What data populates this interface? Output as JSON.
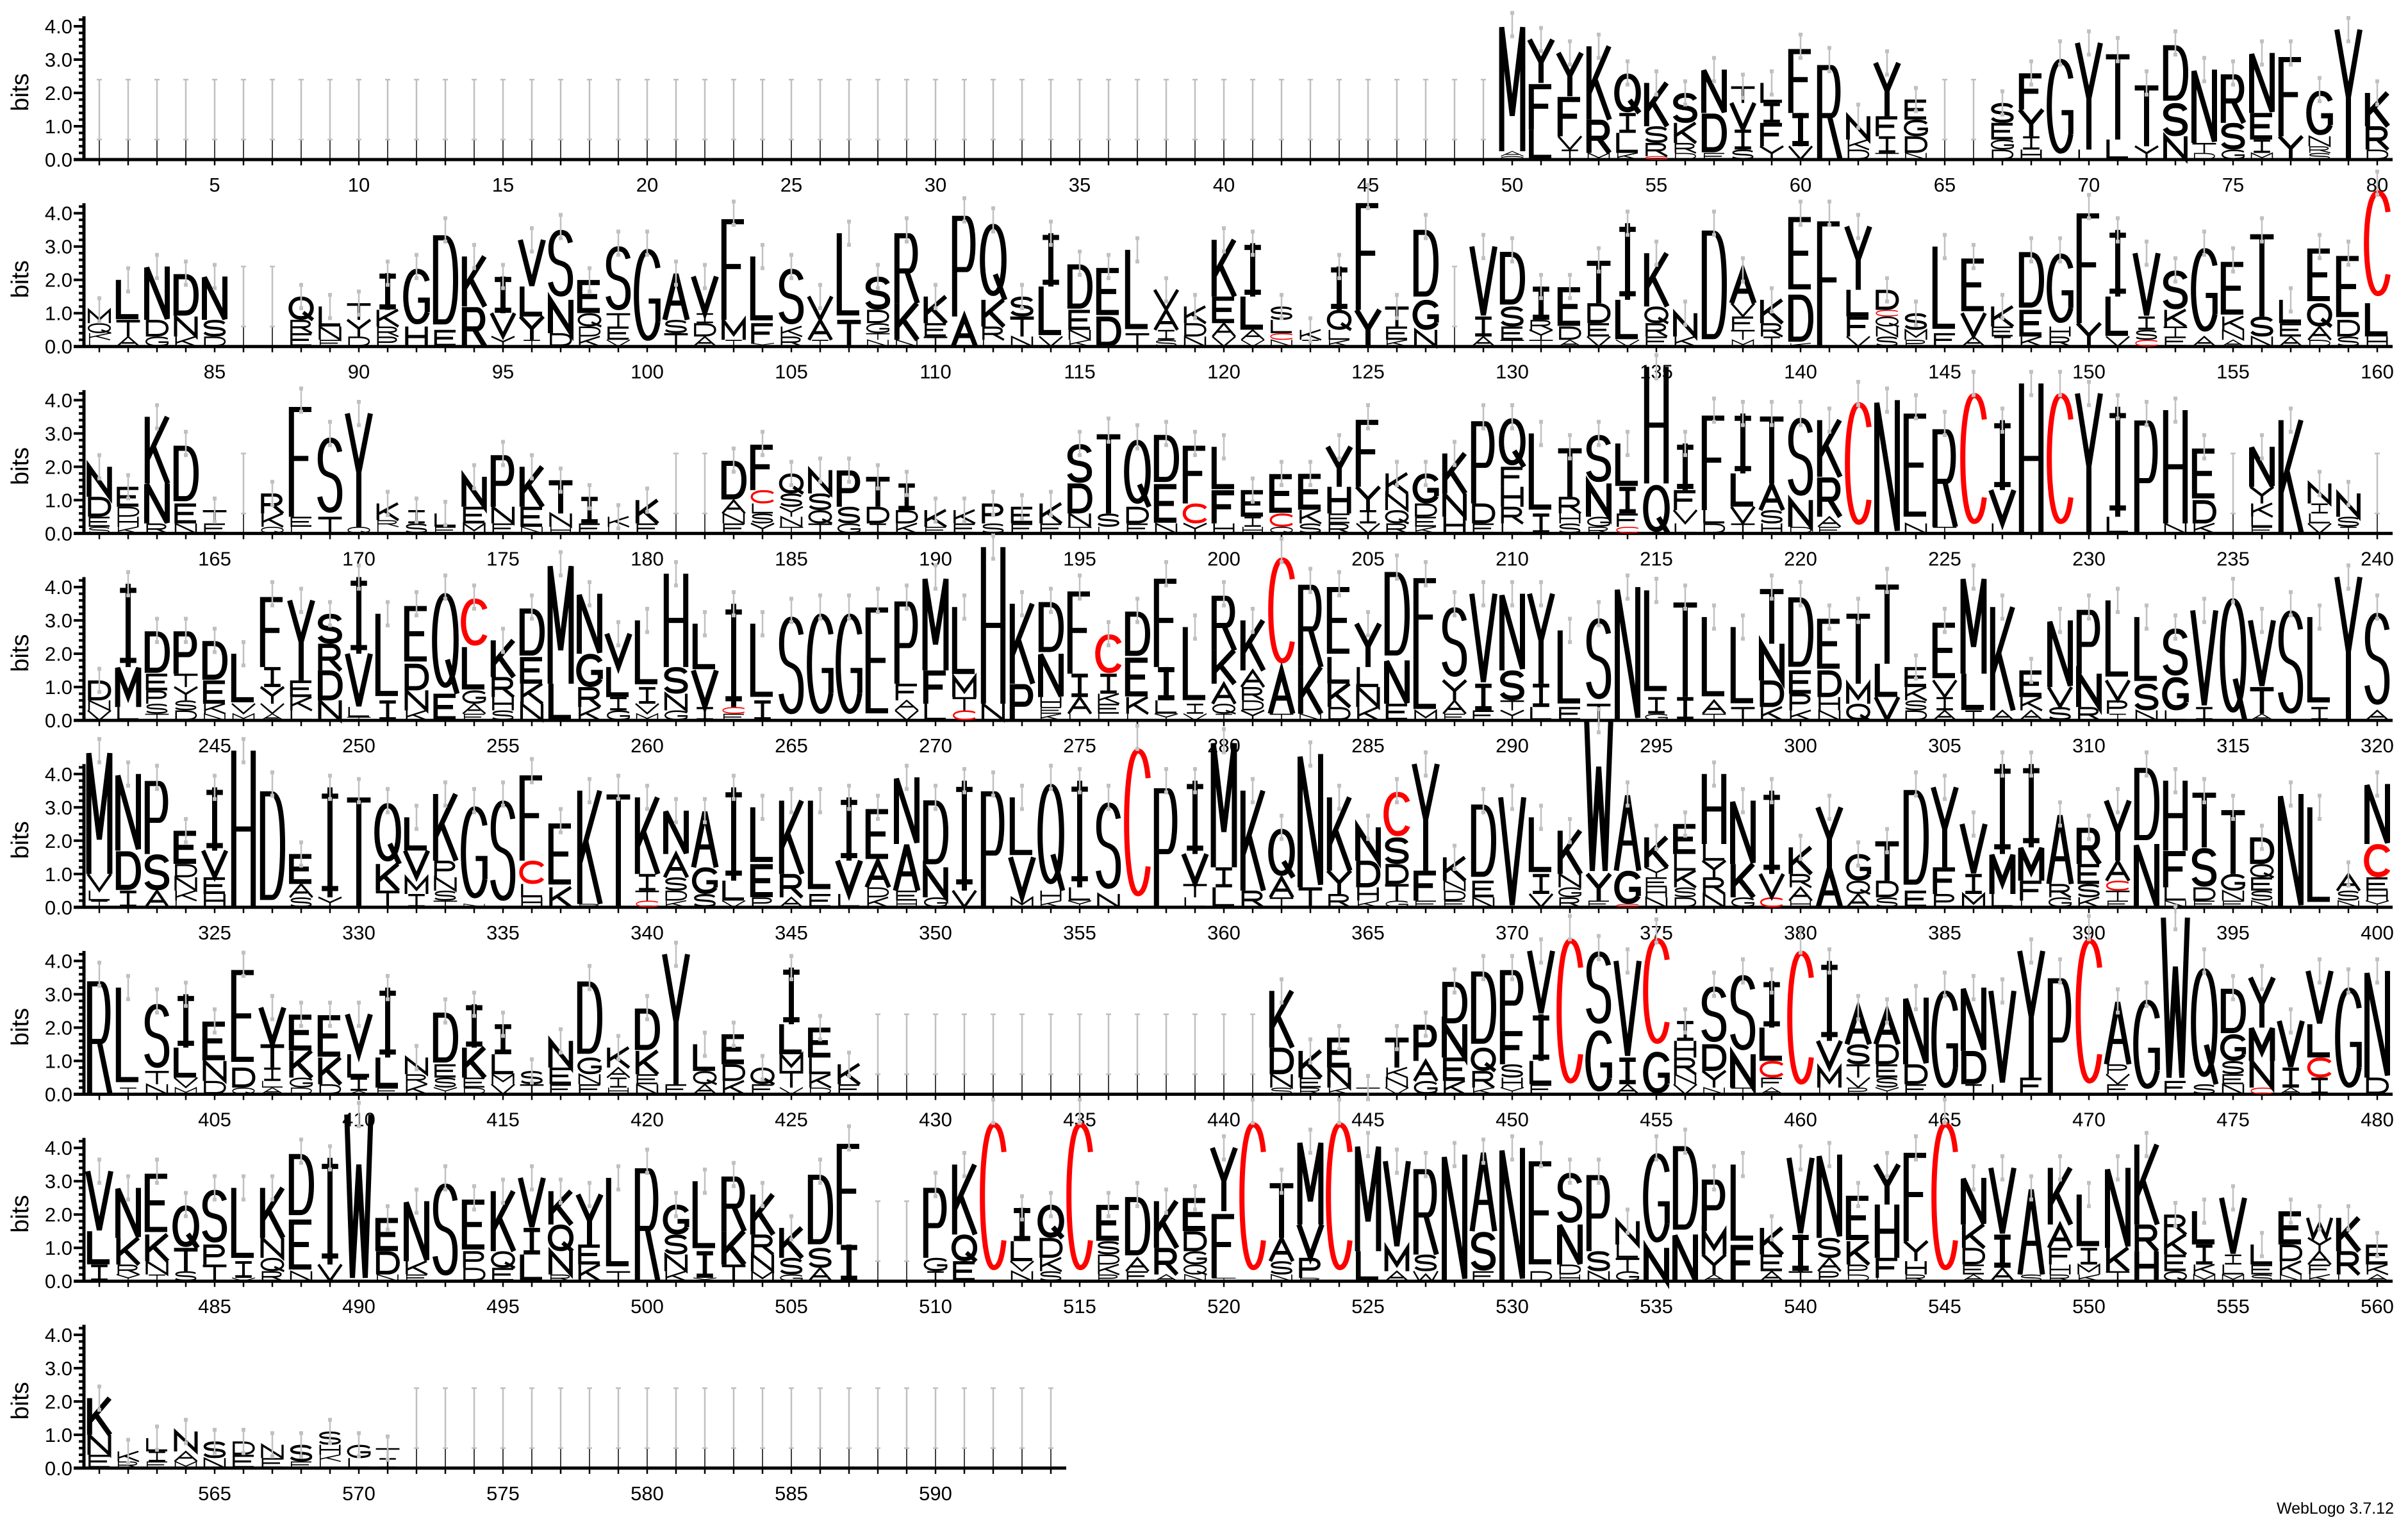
{
  "chart_data": {
    "type": "sequence-logo",
    "title": "",
    "ylabel": "bits",
    "ylim": [
      0,
      4.3
    ],
    "yticks": [
      "0.0",
      "1.0",
      "2.0",
      "3.0",
      "4.0"
    ],
    "positions": [
      1,
      594
    ],
    "positions_per_row": 80,
    "x_tick_label_step": 5,
    "colors": {
      "C": "#ff0000",
      "default": "#000000",
      "errorbar": "#c0c0c0"
    },
    "stacks": {
      "50": "M3.8 A0.15 Q0.1",
      "51": "Y1.3 F1.4 L0.9",
      "52": "Y1.3 F1.2 V0.4 I0.3",
      "53": "K2.2 R1.0 M0.2",
      "54": "Q1.2 I0.6 L0.6 K0.2",
      "55": "K1.3 S0.5 R0.4 C0.1",
      "56": "S0.9 K0.6 R0.3 D0.2",
      "57": "N1.3 D1.2 E0.2",
      "58": "T0.5 V0.8 I0.6 S0.3",
      "59": "L0.6 I0.6 F0.7 Y0.4",
      "60": "F2.0 I1.0 V0.4",
      "61": "R3.0",
      "62": "N0.7 K0.3 D0.3",
      "63": "Y1.6 F0.6 I0.5 T0.2",
      "64": "E0.6 G0.5 D0.5 N0.2",
      "67": "S0.6 E0.5 G0.3 D0.3",
      "68": "F1.1 Y0.8 I0.4 H0.3",
      "69": "G3.2",
      "70": "Y3.2 L0.3",
      "71": "T2.7 L0.6",
      "72": "T1.9 Y0.4",
      "73": "D1.8 S1.0 N0.7",
      "74": "N2.2 T0.3 D0.2",
      "75": "R1.5 S0.8 G0.3",
      "76": "N1.8 E0.8 I0.4 M0.2",
      "77": "F2.5 Y0.7",
      "78": "G1.4 N0.3 R0.2 S0.2",
      "79": "Y3.9",
      "80": "K1.0 R0.7 D0.3",
      "81": "M0.4 Q0.3 K0.2 L0.2",
      "82": "L1.2 T0.5 A0.3",
      "83": "N1.6 D0.5 G0.3",
      "84": "D1.3 N0.6 K0.3",
      "85": "N1.3 S0.5 D0.3",
      "88": "Q0.7 R0.4 E0.4",
      "89": "L0.6 N0.4 E0.2",
      "90": "T0.5 Y0.5 D0.3",
      "91": "I1.1 K0.5 R0.3 P0.3",
      "92": "G1.8 H0.6",
      "93": "D3.0 E0.5",
      "94": "K1.5 R1.2",
      "95": "I1.1 V0.7 Y0.3",
      "96": "V1.4 L0.9 Y0.7 I0.2",
      "97": "S2.2 N1.0 D0.4",
      "98": "E1.0 Q0.4 D0.3 K0.3",
      "99": "S2.1 T0.4 E0.4 V0.2",
      "100": "G3.1",
      "101": "A1.4 S0.4 T0.4",
      "102": "V1.1 I0.3 D0.4 A0.3",
      "103": "F3.2 M0.6 I0.2",
      "104": "L2.0 F0.6 Y0.1",
      "105": "S1.8 K0.3 R0.3",
      "106": "V0.7 A0.6 I0.2",
      "107": "L2.6 T0.8",
      "108": "S1.0 D0.4 G0.3 T0.2 N0.2",
      "109": "R2.2 K1.1 N0.2",
      "110": "K0.8 E0.4 T0.3",
      "111": "P3.2 A0.9",
      "112": "Q2.4 K0.8 R0.4 L0.2",
      "113": "S0.6 T0.6 N0.3",
      "114": "I1.6 L1.5 V0.3",
      "115": "D1.4 E0.6 N0.3 K0.2",
      "116": "E1.5 D0.9",
      "117": "L2.5 T0.4",
      "118": "V0.6 A0.6 I0.3 S0.2",
      "119": "K0.5 D0.4 N0.3",
      "120": "K1.7 E0.8 A0.4 V0.3",
      "121": "I1.6 L1.0 A0.3 V0.2",
      "122": "S0.4 L0.4 C0.2 N0.2",
      "123": "K0.3 I0.2",
      "124": "I1.3 Q0.6 L0.3 K0.2",
      "125": "F3.4 Y1.1",
      "126": "T0.6 E0.4 K0.2",
      "127": "D2.2 G0.9 N0.5",
      "129": "V2.1 I0.6 A0.3",
      "130": "D1.7 S0.6 E0.4 T0.2",
      "131": "I1.0 R0.3 Y0.3 T0.2",
      "132": "E1.2 D0.4 A0.2",
      "133": "T1.3 D0.6 E0.4 V0.3",
      "134": "I2.3 L1.2 V0.2",
      "135": "K1.6 Q0.5 R0.4 E0.3",
      "136": "N0.7 K0.3",
      "137": "D3.7",
      "138": "A1.0 V0.4 F0.4 T0.3 M0.2",
      "139": "K0.7 R0.4 I0.3",
      "140": "E2.4 D1.5 K0.1",
      "141": "F4.0",
      "142": "Y1.9 L0.8 F0.6 V0.3",
      "143": "D0.6 C0.2 Q0.3 N0.3 S0.3",
      "144": "S0.5 M0.3 P0.2",
      "145": "L2.6 F0.4",
      "146": "E1.7 V0.7 A0.3",
      "147": "K0.6 E0.3 I0.3",
      "148": "D1.8 E0.8 K0.3",
      "149": "G2.3 H0.3 R0.3",
      "150": "F3.5 Y0.7",
      "151": "I2.0 L1.2 V0.3",
      "152": "V1.9 I0.4 S0.3 C0.2",
      "153": "S1.2 K0.5 T0.3 E0.3",
      "154": "G2.8 A0.3",
      "155": "E1.7 K0.4 N0.3 A0.2",
      "156": "T2.6 S0.6 N0.3",
      "157": "L0.7 E0.4 A0.3",
      "158": "E1.7 Q0.7 A0.4 D0.2",
      "159": "E2.0 D0.5 S0.3",
      "160": "C3.6 L1.0 H0.3",
      "161": "N0.9 D0.6 E0.3 S0.2",
      "162": "E0.6 D0.3 H0.3 K0.2",
      "163": "K2.0 N1.2 R0.3",
      "164": "D1.8 E0.6 N0.3",
      "165": "T0.4 E0.3",
      "167": "R0.6 K0.4 Q0.2",
      "168": "F3.5 E0.3 L0.2",
      "169": "S2.5 T0.5",
      "170": "Y3.4 Q0.2",
      "171": "K0.5 R0.2 L0.2",
      "172": "I0.4 S0.3",
      "173": "L0.4 E0.2",
      "174": "N0.9 E0.5 M0.3",
      "175": "P1.6 N0.5 E0.3",
      "176": "K1.2 E0.6 N0.2",
      "177": "T1.0 N0.4 H0.2",
      "178": "I0.8 E0.3",
      "179": "K0.3 L0.2",
      "180": "K0.7 E0.3",
      "183": "D1.2 A0.4 N0.3 E0.3",
      "184": "F1.4 C0.4 L0.3 S0.3 Y0.3",
      "185": "Q0.6 S0.4 Y0.3 N0.3 T0.2",
      "186": "N0.7 S0.5 Q0.4 T0.3",
      "187": "P1.1 S0.5 G0.3",
      "188": "T0.9 D0.5 I0.3",
      "189": "I0.8 D0.4 K0.3",
      "190": "K0.5 E0.2",
      "191": "K0.4 E0.3",
      "192": "P0.6 S0.3",
      "193": "E0.5 F0.3",
      "194": "K0.6 E0.3",
      "195": "S1.2 D0.9 N0.4 T0.2",
      "196": "T2.5 S0.4 L0.2",
      "197": "Q2.1 D0.5 E0.3",
      "198": "D1.5 E1.2 N0.3",
      "199": "F1.8 C0.6 Y0.3",
      "200": "L1.3 F1.0 H0.3",
      "201": "E0.8 I0.3 H0.2",
      "202": "E1.2 C0.4 Q0.2",
      "203": "E1.1 K0.4 S0.3",
      "204": "Y1.2 H0.8 E0.3 R0.3",
      "205": "F2.1 Y0.7 I0.4 V0.3",
      "206": "K0.6 N0.5 Q0.4 R0.3",
      "207": "G0.9 D0.4 E0.3 K0.2",
      "208": "K1.2 N0.7 H0.5",
      "209": "P2.6 D0.6 E0.3",
      "210": "Q1.5 F0.6 H0.6 R0.5 L0.3",
      "211": "L2.4 I0.6",
      "212": "T1.5 R0.5 H0.3 S0.3",
      "213": "S1.5 N1.0 G0.3 R0.2",
      "214": "L1.3 I0.8 F0.4 C0.2",
      "215": "H3.5 Q1.5",
      "216": "I1.4 F0.6 V0.4 L0.3",
      "217": "F3.0 L0.4 D0.3",
      "218": "I1.8 L1.0 V0.5 T0.3",
      "219": "T2.1 A0.8 S0.4 H0.3",
      "220": "S2.6 N0.8 D0.2",
      "221": "K1.7 R1.2 A0.3 E0.2",
      "222": "C4.2",
      "223": "N4.0",
      "224": "E3.5 N0.3",
      "225": "R3.1 T0.2",
      "226": "C4.5",
      "227": "I2.1 V1.0 L0.3",
      "228": "H4.5",
      "229": "C4.5",
      "230": "Y4.2",
      "231": "I3.3 L0.5",
      "232": "P3.6",
      "233": "H3.4 N0.3",
      "234": "E1.6 D0.7 K0.3",
      "236": "N1.2 Y0.5 K0.4 L0.3 E0.2",
      "237": "K3.4",
      "238": "N0.6 I0.3 L0.3 V0.3",
      "239": "N0.7 S0.3 I0.2",
      "241": "D0.6 N0.3 V0.3",
      "242": "I2.5 M1.2 L0.4",
      "243": "D1.3 E0.5 P0.4 S0.3 T0.2",
      "244": "P1.3 T0.4 Y0.4 S0.3 D0.3",
      "245": "D1.2 E0.7 K0.3 N0.2",
      "246": "L1.5 V0.3 M0.2",
      "247": "F2.2 I0.6 Y0.5 V0.3 A0.2",
      "248": "Y2.4 E0.5 K0.4 L0.3",
      "249": "S0.9 R0.8 D0.9 N0.6",
      "250": "I2.3 V1.6 L0.3 T0.1",
      "251": "L2.6 I0.6",
      "252": "E1.8 D0.8 N0.6 K0.3",
      "253": "Q3.2 E0.8",
      "254": "C1.5 L1.3 G0.4 A0.3 F0.2",
      "255": "K1.1 R0.6 H0.4 S0.3",
      "256": "D1.5 E0.8 K0.6 N0.5",
      "257": "M3.6 L1.1",
      "258": "N1.8 G1.0 R0.6 K0.4",
      "259": "V1.0 L0.9 I0.4 G0.3",
      "260": "L2.0 I0.5 V0.3 M0.2",
      "261": "H2.8 S0.8 N0.5 G0.3",
      "262": "L1.4 V1.1 I0.4",
      "263": "I3.1 C0.2 E0.2",
      "264": "L2.3 I0.6",
      "265": "S3.3",
      "266": "G3.4",
      "267": "G3.4",
      "268": "E3.6",
      "269": "P2.6 F0.5 A0.3 V0.3",
      "270": "M2.8 F1.0 L0.5",
      "271": "L2.1 M0.6 T0.4 C0.3",
      "272": "H4.7 N0.5",
      "273": "K2.4 P1.1",
      "274": "D1.6 N1.3 H0.3 E0.2 K0.2",
      "275": "F2.6 I0.7 A0.5 L0.2",
      "276": "C1.2 I0.6 K0.3 E0.3 L0.2",
      "277": "D1.4 E1.2 K0.5 L0.2",
      "278": "F2.8 I1.0 L0.4 Y0.2",
      "279": "L2.3 I0.3 V0.2",
      "280": "R1.7 K1.0 A0.6 Q0.3 I0.2",
      "281": "K1.5 A0.5 R0.4 D0.3 Y0.3",
      "282": "C3.6 A1.3 T0.2",
      "283": "R2.6 K1.4 N0.2",
      "284": "E2.2 L0.8 K0.7 D0.4",
      "285": "Y1.3 L0.6 N0.6 K0.4",
      "286": "D2.8 N1.3 E0.5",
      "287": "F2.6 L1.5 M0.3",
      "288": "S2.3 Y0.6 A0.4 F0.2",
      "289": "V2.7 I0.8 F0.3",
      "290": "N2.3 S0.9 T0.3 Y0.3",
      "291": "Y2.7 I0.7 L0.4",
      "292": "L2.3 E0.4",
      "293": "S2.7 T0.5",
      "294": "N4.0",
      "295": "L3.2 I0.5 G0.2",
      "296": "T3.0 I0.7",
      "297": "L2.5 A0.4 T0.2",
      "298": "L2.4 T0.4",
      "299": "T1.7 N1.1 D0.8 K0.4",
      "300": "D2.3 E0.7 P0.5 K0.3",
      "301": "E1.6 D0.8 H0.4 N0.3",
      "302": "T2.2 M0.6 Q0.5",
      "303": "T2.5 L1.0 V0.7",
      "304": "E0.6 K0.4 S0.3 D0.3",
      "305": "E1.8 V0.5 I0.4 A0.3",
      "306": "M2.9 L1.1 I0.3",
      "307": "K3.1 A0.3",
      "308": "E0.8 K0.4 A0.3",
      "309": "N2.0 V0.6 S0.4",
      "310": "P2.0 N1.0 R0.4",
      "311": "L2.4 V0.6 P0.4 I0.2",
      "312": "L2.0 S0.8 N0.3",
      "313": "S1.5 G1.0 L0.3",
      "314": "V2.9 I0.4",
      "315": "Q3.9",
      "316": "V2.0 T0.8 A0.2",
      "317": "S3.5",
      "318": "L2.7 I0.4",
      "319": "Y4.3",
      "320": "S3.1 A0.3",
      "321": "M3.7 V0.5 L0.3 I0.2",
      "322": "N2.3 D1.2 I0.5",
      "323": "P2.3 S1.1 A0.5",
      "324": "E1.0 D0.4 N0.4 K0.3 L0.2",
      "325": "I1.9 V0.8 E0.5 H0.4",
      "326": "H4.7",
      "327": "D3.7",
      "328": "E0.9 A0.4 S0.3",
      "329": "I3.3 Y0.3",
      "330": "T3.5",
      "331": "Q1.9 K0.8 T0.5",
      "332": "L1.0 V0.8 M0.5 I0.4",
      "333": "K2.0 P0.5 N0.4 S0.3 T0.2",
      "334": "G3.1 N0.1",
      "335": "S3.4",
      "336": "F2.7 C0.7 L0.4 H0.3",
      "337": "E2.0 K0.6",
      "338": "K3.4 R0.1",
      "339": "T3.6",
      "340": "K2.3 I0.5 T0.3 C0.2",
      "341": "N1.3 A0.7 S0.4 D0.3 K0.2",
      "342": "A1.7 G0.8 S0.4",
      "343": "I2.8 L0.6 V0.2",
      "344": "L1.7 E1.0 P0.3",
      "345": "K2.2 R0.7 A0.3",
      "346": "L2.8 E0.4",
      "347": "I1.9 V1.0 L0.4",
      "348": "E1.6 A0.8 D0.3 K0.3",
      "349": "N2.0 A1.4 E0.3 H0.2",
      "350": "D2.1 N0.9 G0.3",
      "351": "I3.3 V0.5",
      "352": "P3.7",
      "353": "L1.8 V1.2 M0.3",
      "354": "Q3.4 H0.3 K0.2",
      "355": "I3.2 L0.4 Y0.2",
      "356": "S2.9 N0.4",
      "357": "C5.1",
      "358": "P3.8",
      "359": "I2.2 V0.9 T0.4 L0.3",
      "360": "M3.8 I0.6 L0.6",
      "361": "K3.0 R0.5",
      "362": "Q1.5 A0.6 T0.3",
      "363": "N4.0 T0.6",
      "364": "K2.2 Y0.7 R0.4",
      "365": "N1.0 D0.8 H0.4 K0.2",
      "366": "C1.4 S0.8 D0.6 T0.5 G0.2",
      "367": "Y3.2 F0.9 E0.2",
      "368": "K0.7 N0.3 D0.3 E0.2",
      "369": "D2.4 E0.5 N0.3",
      "370": "V3.3",
      "371": "L1.7 I0.6 V0.4",
      "372": "K1.3 N0.4 G0.3 R0.3",
      "373": "W4.6 Y0.8 F0.2",
      "374": "A2.3 G1.0 C0.1",
      "375": "K0.9 Y0.3 E0.3 H0.3 N0.3",
      "376": "E0.9 L0.5 K0.5 S0.3 D0.3",
      "377": "H2.1 L0.5 Y0.5 R0.5 N0.4",
      "378": "N1.9 K1.0 G0.3",
      "379": "I2.5 V0.7 C0.3",
      "380": "K0.8 R0.4 A0.4 H0.2",
      "381": "Y1.8 A1.2",
      "382": "G0.8 Q0.4 A0.4",
      "383": "T1.2 D0.5 S0.3",
      "384": "D3.2 E0.5",
      "385": "Y2.4 F0.8 P0.4",
      "386": "V1.5 I0.6 M0.4",
      "387": "I2.7 M1.2 L0.4",
      "388": "I2.5 M1.0 F0.6 L0.2",
      "389": "A2.1 R0.4 G0.3",
      "390": "R1.1 E0.6 S0.4 K0.3",
      "391": "Y1.8 A0.6 C0.3 T0.3 F0.2",
      "392": "D2.4 N1.9",
      "393": "H2.1 F1.1 L0.4 N0.2",
      "394": "T1.7 S1.2 D0.4 E0.2",
      "395": "T2.0 G0.5 N0.3 E0.2",
      "396": "D0.8 Q0.4 E0.4 S0.3 N0.2",
      "397": "N3.4",
      "398": "L3.0",
      "399": "A0.5 S0.3 N0.2",
      "400": "N1.8 C1.0 E0.4 H0.3 Y0.2",
      "401": "R3.6",
      "402": "L3.0 I0.2",
      "403": "S2.1 T0.4 N0.3",
      "404": "I1.6 L0.9 V0.3 M0.2",
      "405": "E1.2 N0.6 D0.4",
      "406": "E3.1 D0.6 Q0.2",
      "407": "V1.1 T0.7 I0.4 L0.2 A0.2",
      "408": "E1.1 K0.8 G0.3 D0.2",
      "409": "E1.3 K0.8 D0.3",
      "410": "V1.2 L0.7 I0.4 A0.1",
      "411": "I2.1 L0.9 F0.2",
      "412": "N0.5 R0.3 K0.3",
      "413": "D1.6 E0.4 S0.3 Y0.2",
      "414": "I1.3 K0.9 E0.3 D0.2",
      "415": "I0.9 L0.6 M0.3 V0.3",
      "416": "S0.4 T0.3",
      "417": "N0.8 E0.5 F0.3",
      "418": "D2.4 G0.5 N0.3 E0.3",
      "419": "K0.6 A0.3 I0.3 H0.2",
      "420": "D1.3 K0.7 E0.3 N0.3",
      "421": "Y3.9 F0.3",
      "422": "L0.8 Q0.4 A0.3",
      "423": "E0.9 D0.5 K0.4",
      "424": "Q0.5 E0.3",
      "425": "I1.7 L0.9 M0.5 T0.5 V0.2",
      "426": "E0.9 L0.5 K0.4 D0.2",
      "427": "K0.6 E0.3",
      "442": "K1.7 D0.8 N0.4 S0.2",
      "443": "K0.8 E0.3 R0.2",
      "444": "E0.9 N0.6 K0.2",
      "445": "T0.2",
      "446": "T0.9 K0.3 N0.3 V0.2",
      "447": "P1.1 A0.6 G0.4",
      "448": "D1.3 N1.0 E0.7 K0.4",
      "449": "D2.4 Q0.7 R0.5 K0.2",
      "450": "P1.9 F1.0 S0.4 H0.3 Y0.2",
      "451": "V1.9 I1.4 L0.7 F0.3",
      "452": "C5.0",
      "453": "S2.4 G2.0",
      "454": "V2.9 I0.8 A0.3",
      "455": "C3.6 G1.3",
      "456": "I0.6 H0.5 R0.5 N0.3 V0.3",
      "457": "S1.8 D0.8 Y0.5 N0.2",
      "458": "S2.5 N1.0 T0.2",
      "459": "I1.4 L1.0 C0.5 F0.3 A0.2",
      "460": "C4.6",
      "461": "I2.4 V0.8 M0.6 L0.2",
      "462": "A1.1 S0.6 T0.4 V0.3 P0.2",
      "463": "A1.0 D0.6 E0.4 S0.3 Y0.2",
      "464": "N2.0 D0.6 E0.3",
      "465": "G3.3",
      "466": "N1.9 D1.0 I0.3",
      "467": "V2.8 L0.3",
      "468": "Y3.8 F0.5",
      "469": "P3.7",
      "470": "C5.0",
      "471": "A1.9 P0.3 V0.3 E0.3",
      "472": "G3.0",
      "473": "W4.9 F0.4",
      "474": "Q3.7 S0.3",
      "475": "D1.4 G0.8 S0.4 E0.3 N0.3",
      "476": "Y1.5 M1.0 N0.8 C0.2",
      "477": "V1.4 I0.6 A0.2",
      "478": "V1.6 L1.0 C0.6 I0.5",
      "479": "G3.4",
      "480": "N3.2 D0.5",
      "481": "V1.8 L1.0 I0.5",
      "482": "N1.5 K0.8 R0.3 Y0.2",
      "483": "E1.9 K0.8 N0.4 I0.2",
      "484": "Q1.3 T0.7 S0.3",
      "485": "S1.7 P0.6 T0.5",
      "486": "L2.2 I0.5 V0.1",
      "487": "K1.5 N0.6 Q0.4 R0.3",
      "488": "D2.0 E1.6 N0.3",
      "489": "I3.2 V0.5",
      "490": "W5.0",
      "491": "E1.0 D0.7 N0.2",
      "492": "N1.8 K0.4 E0.2",
      "493": "S3.1",
      "494": "E1.6 P0.5 D0.4",
      "495": "K1.8 Q0.5 E0.4",
      "496": "V1.5 I0.8 L0.8",
      "497": "K1.0 Q0.8 N0.7 R0.2",
      "498": "Y1.5 E0.6 K0.5",
      "499": "L2.8 T0.3",
      "500": "R3.6",
      "501": "G0.9 S0.6 N0.5 K0.3",
      "502": "L2.1 I0.8 Y0.1",
      "503": "R1.7 K1.0 T0.5",
      "504": "K1.2 R0.6 N0.5 M0.3",
      "505": "K0.9 S0.5 G0.2",
      "506": "D2.3 S0.6 A0.4",
      "507": "F3.2 I1.1",
      "510": "P2.2 G0.4 I0.3",
      "511": "K2.1 Q0.8 E0.6",
      "512": "C5.1",
      "513": "I1.0 L0.6 V0.3 N0.3",
      "514": "Q1.0 D0.6 K0.4 S0.3",
      "515": "C5.1",
      "516": "E1.1 S0.4 D0.3 K0.3 P0.2",
      "517": "D1.9 A0.4 F0.3",
      "518": "K1.4 R0.8 A0.2",
      "519": "E1.0 D0.6 G0.4 Q0.3 N0.2",
      "520": "Y1.9 F2.0 T0.1",
      "521": "C5.1",
      "522": "T1.7 A0.7 S0.4 N0.2",
      "523": "M2.5 V1.0 P0.6 R0.1",
      "524": "C5.1",
      "525": "M3.2 L0.9",
      "526": "V2.6 M0.7 A0.3",
      "527": "R2.7 S0.5 W0.3",
      "528": "N3.8",
      "529": "A2.4 S1.2 F0.3",
      "530": "N4.0",
      "531": "E3.5 D0.3",
      "532": "S1.6 N1.2 D0.3 H0.2",
      "533": "P2.4 S0.6 N0.3",
      "534": "N0.7 L0.4 T0.4 G0.3",
      "535": "G3.0 N1.0",
      "536": "D2.8 N1.4",
      "537": "P1.6 M0.7 Y0.6 A0.2",
      "538": "L2.4 F1.1",
      "539": "K0.8 E0.5 A0.3",
      "540": "V2.3 I1.1 T0.3",
      "541": "N2.5 S0.6 A0.4 P0.3",
      "542": "E1.4 K0.7 P0.3 D0.2",
      "543": "Y1.2 H1.6 F0.6 L0.1",
      "544": "F2.8 Y0.6 H0.4 R0.2",
      "545": "C5.1",
      "546": "N1.4 K0.7 D0.5 E0.3 A0.2",
      "547": "V2.0 I1.0 A0.4",
      "548": "A2.6 S0.2",
      "549": "K1.7 A0.7 F0.5 H0.3 R0.2",
      "550": "L1.6 I0.5 M0.3 K0.2",
      "551": "N2.4 K0.7 T0.3",
      "552": "K2.4 R0.8 H0.9",
      "553": "R0.6 K0.6 E0.5 Q0.3",
      "554": "L1.0 I0.6 K0.3 M0.2",
      "555": "V1.7 I0.3 L0.3 M0.2",
      "556": "L0.6 E0.3 S0.2",
      "557": "E1.0 D0.5 K0.4 N0.2",
      "558": "W0.6 Y0.4 A0.4 F0.3 K0.2",
      "559": "K1.0 R0.7 L0.2",
      "560": "E0.6 K0.3 A0.2",
      "561": "K1.1 N0.6 E0.4",
      "562": "K0.3 R0.2",
      "563": "L0.4 I0.3 F0.2",
      "564": "N0.6 A0.3 M0.2",
      "565": "S0.5 N0.3",
      "566": "D0.4 E0.4",
      "567": "N0.4 E0.3",
      "568": "S0.5 E0.2",
      "569": "S0.4 H0.3 K0.2 L0.2",
      "570": "G0.4 L0.3",
      "571": "T0.3 I0.3"
    }
  },
  "footer": "WebLogo 3.7.12"
}
